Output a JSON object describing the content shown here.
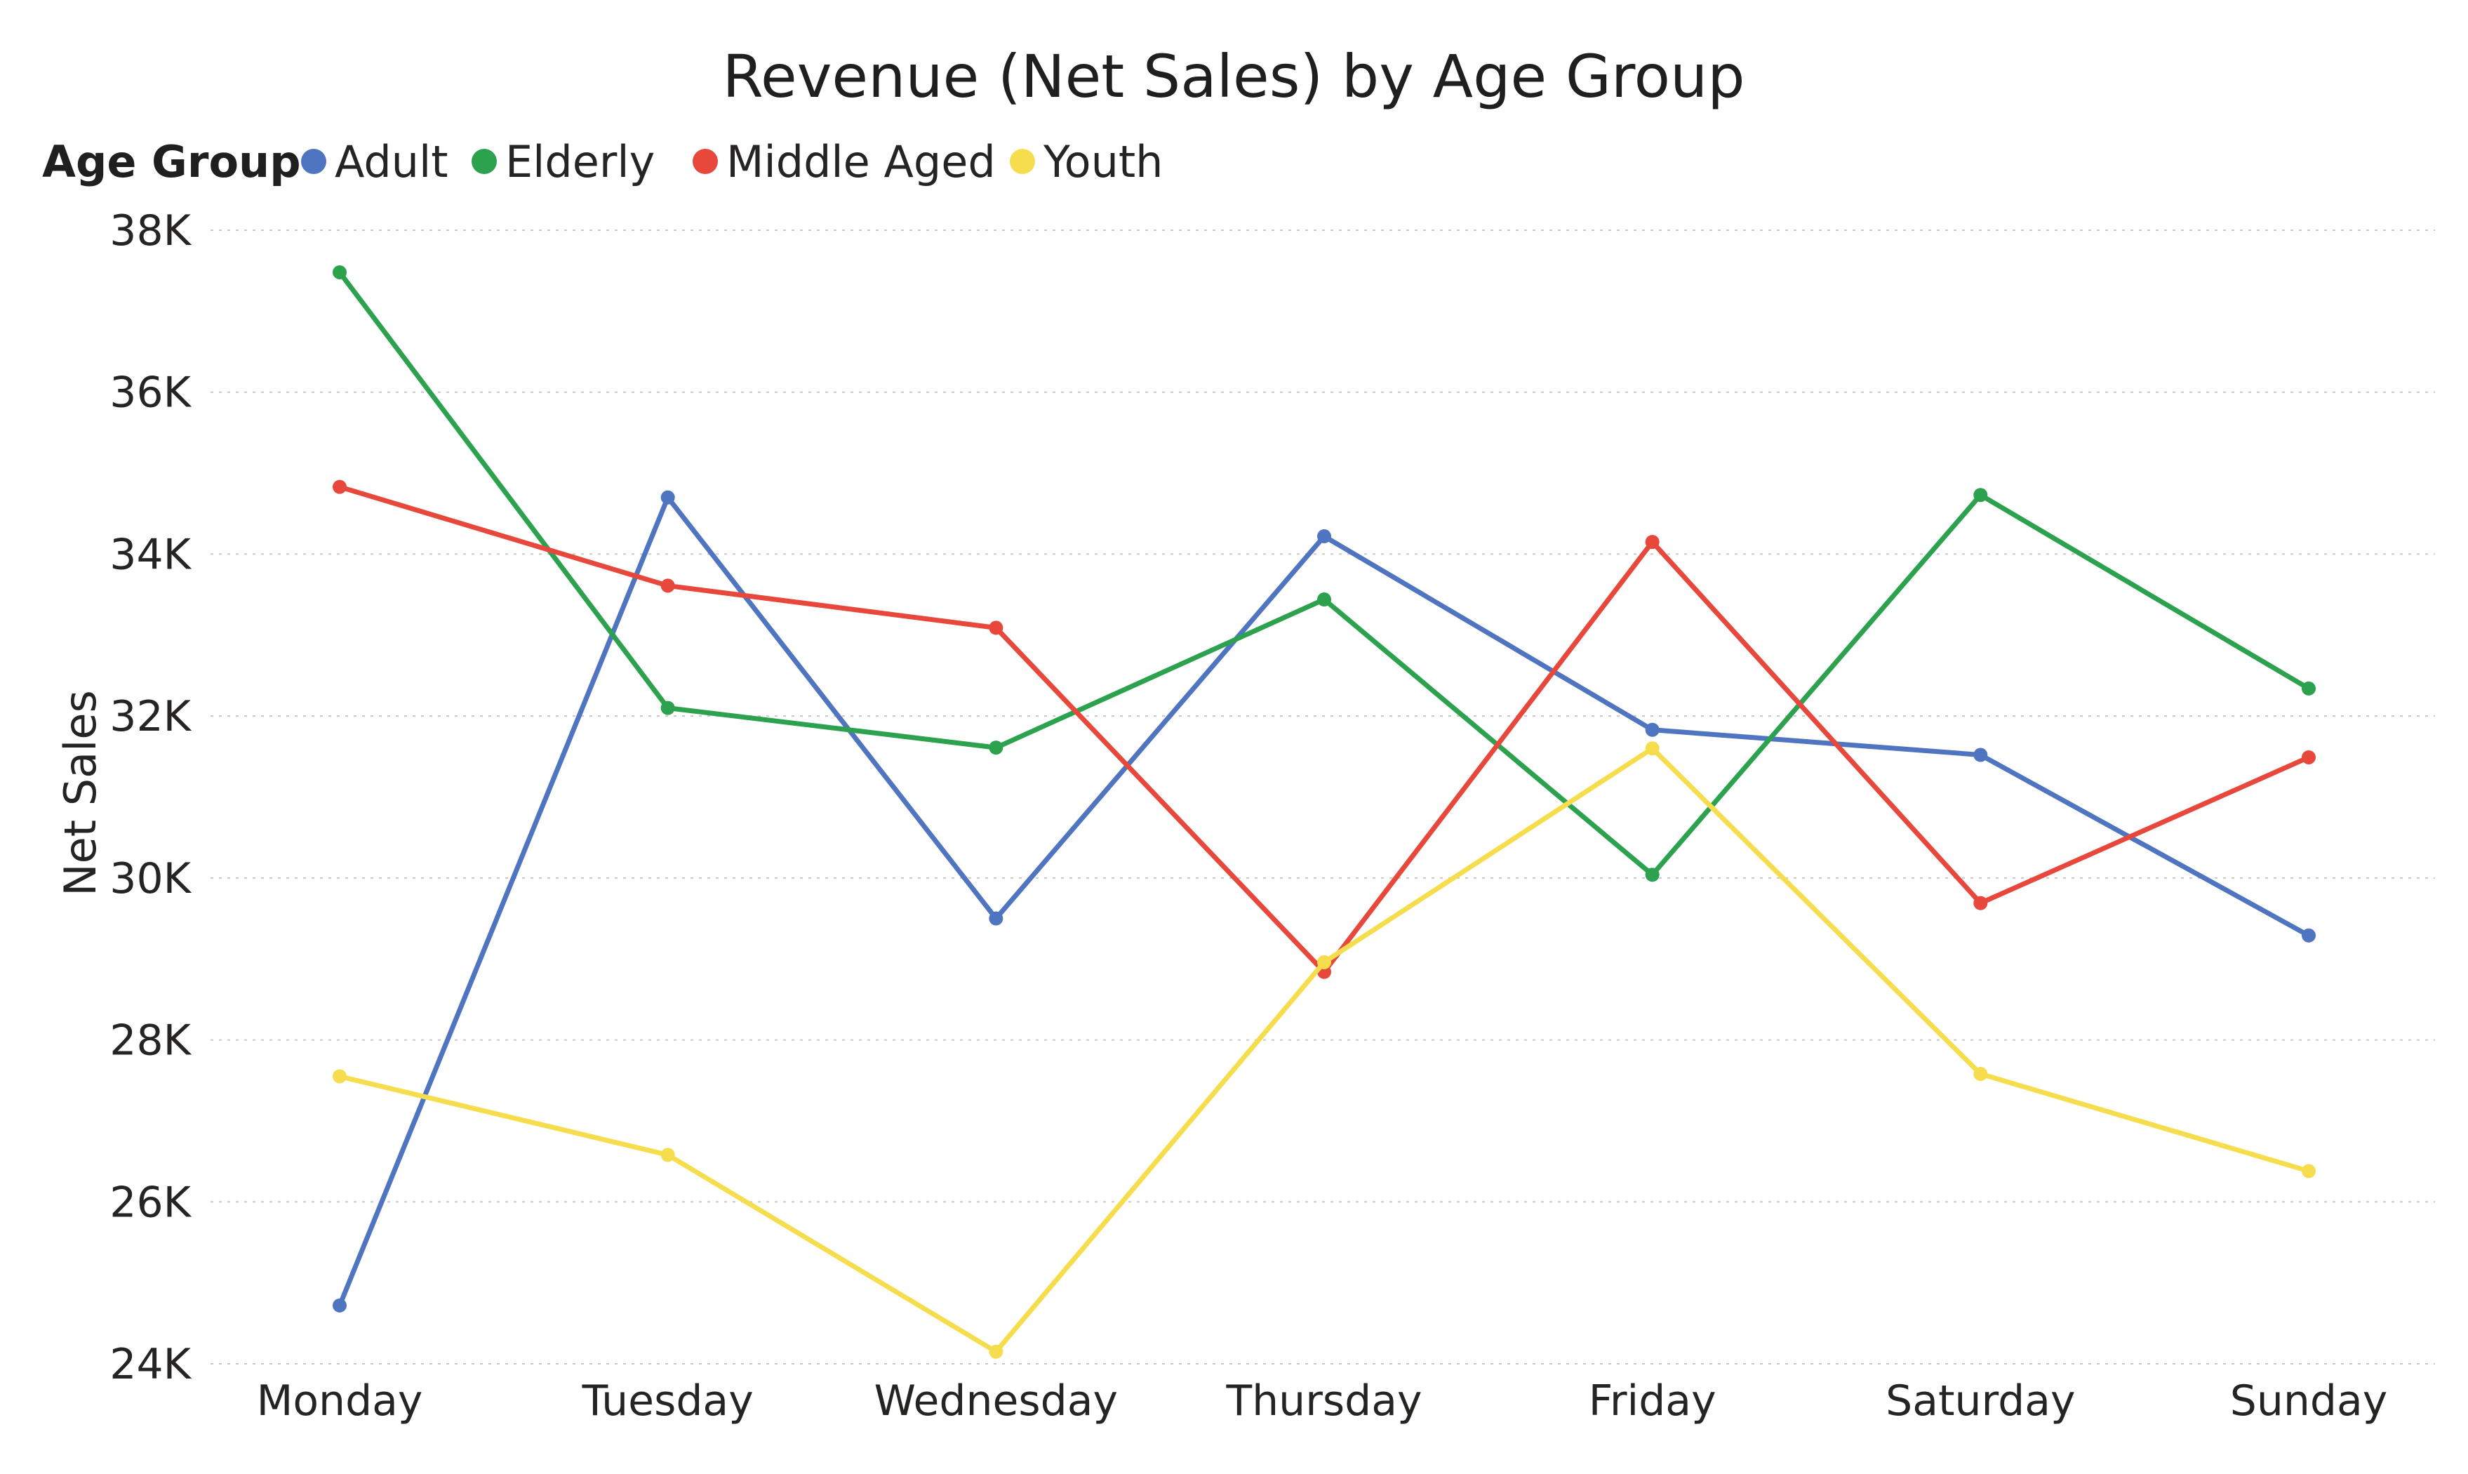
{
  "chart_data": {
    "type": "line",
    "title": "Revenue (Net Sales) by Age Group",
    "xlabel": "",
    "ylabel": "Net Sales",
    "legend_title": "Age Group",
    "legend_position": "top-left",
    "grid": true,
    "ylim": [
      24000,
      38000
    ],
    "yticks": [
      24000,
      26000,
      28000,
      30000,
      32000,
      34000,
      36000,
      38000
    ],
    "ytick_labels": [
      "24K",
      "26K",
      "28K",
      "30K",
      "32K",
      "34K",
      "36K",
      "38K"
    ],
    "categories": [
      "Monday",
      "Tuesday",
      "Wednesday",
      "Thursday",
      "Friday",
      "Saturday",
      "Sunday"
    ],
    "series": [
      {
        "name": "Adult",
        "color": "#4f74c0",
        "values": [
          24720,
          34700,
          29500,
          34220,
          31830,
          31520,
          29290
        ]
      },
      {
        "name": "Elderly",
        "color": "#2ca24f",
        "values": [
          37480,
          32100,
          31610,
          33440,
          30040,
          34730,
          32340
        ]
      },
      {
        "name": "Middle Aged",
        "color": "#e8473b",
        "values": [
          34830,
          33610,
          33090,
          28840,
          34150,
          29690,
          31490
        ]
      },
      {
        "name": "Youth",
        "color": "#f6dd4d",
        "values": [
          27550,
          26580,
          24150,
          28960,
          31600,
          27580,
          26380
        ]
      }
    ]
  }
}
